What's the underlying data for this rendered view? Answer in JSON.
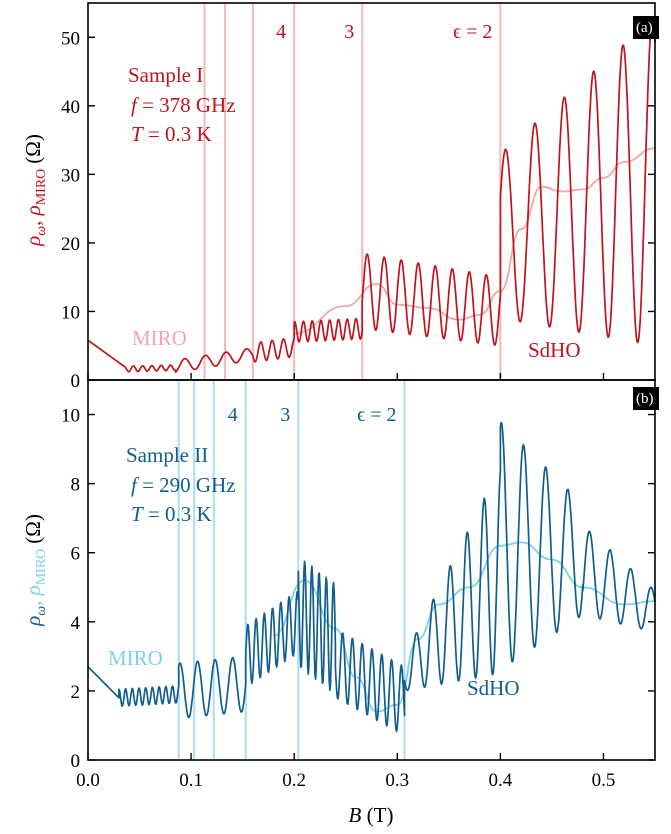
{
  "chart_data": [
    {
      "panel": "a",
      "panel_tag": "(a)",
      "type": "line",
      "colors": {
        "main": "#c0141c",
        "miro": "#f2a6a8",
        "epsilon_line": "#f6b7b8"
      },
      "ylabel": {
        "rho": "ρ",
        "omega": "ω",
        "comma": ", ",
        "miro_sub": "MIRO",
        "unit": "(Ω)"
      },
      "xlim": [
        0.0,
        0.55
      ],
      "ylim": [
        0,
        55
      ],
      "yticks": [
        0,
        10,
        20,
        30,
        40,
        50
      ],
      "sample": {
        "name": "Sample I",
        "f_label": "f",
        "f_value": " = 378 GHz",
        "t_label": "T",
        "t_value": " = 0.3 K"
      },
      "labels": {
        "miro": "MIRO",
        "sdho": "SdHO"
      },
      "epsilon_lines": [
        {
          "x": 0.113,
          "label": ""
        },
        {
          "x": 0.133,
          "label": ""
        },
        {
          "x": 0.16,
          "label": ""
        },
        {
          "x": 0.2,
          "label": "4"
        },
        {
          "x": 0.266,
          "label": "3"
        },
        {
          "x": 0.4,
          "label": "ϵ = 2"
        }
      ],
      "series": [
        {
          "role": "rho_omega",
          "segments": [
            {
              "from": 0.0,
              "to": 0.035,
              "kind": "fall",
              "base": [
                5.8,
                2.0
              ],
              "amp": 0,
              "period": 0.01
            },
            {
              "from": 0.035,
              "to": 0.085,
              "kind": "osc",
              "base": [
                1.6,
                1.8
              ],
              "amp": 0.4,
              "period": 0.009
            },
            {
              "from": 0.085,
              "to": 0.16,
              "kind": "osc",
              "base": [
                2.0,
                3.8
              ],
              "amp": 0.9,
              "period": 0.02
            },
            {
              "from": 0.16,
              "to": 0.2,
              "kind": "osc",
              "base": [
                4.0,
                4.8
              ],
              "amp": 1.4,
              "period": 0.011
            },
            {
              "from": 0.2,
              "to": 0.266,
              "kind": "osc",
              "base": [
                7.0,
                7.5
              ],
              "amp": 1.5,
              "period": 0.0085
            },
            {
              "from": 0.266,
              "to": 0.4,
              "kind": "osc",
              "base": [
                13.0,
                10.0
              ],
              "amp": [
                5.5,
                5.0
              ],
              "period": 0.0165
            },
            {
              "from": 0.4,
              "to": 0.55,
              "kind": "osc",
              "base": [
                21.0,
                29.0
              ],
              "amp": [
                12.0,
                24.0
              ],
              "period": 0.0285
            }
          ]
        },
        {
          "role": "rho_miro",
          "points": [
            [
              0.2,
              6.8
            ],
            [
              0.25,
              10.8
            ],
            [
              0.28,
              14.0
            ],
            [
              0.3,
              11.0
            ],
            [
              0.33,
              10.5
            ],
            [
              0.36,
              8.8
            ],
            [
              0.38,
              9.5
            ],
            [
              0.4,
              13.0
            ],
            [
              0.42,
              22.0
            ],
            [
              0.44,
              28.2
            ],
            [
              0.46,
              27.5
            ],
            [
              0.48,
              27.8
            ],
            [
              0.5,
              29.5
            ],
            [
              0.52,
              31.8
            ],
            [
              0.55,
              33.8
            ]
          ]
        }
      ]
    },
    {
      "panel": "b",
      "panel_tag": "(b)",
      "type": "line",
      "colors": {
        "main": "#105e8e",
        "miro": "#7ed0ef",
        "epsilon_line": "#a9def4"
      },
      "ylabel": {
        "rho": "ρ",
        "omega": "ω",
        "comma": ", ",
        "miro_sub": "MIRO",
        "unit": "(Ω)"
      },
      "xlabel": {
        "var": "B",
        "unit": " (T)"
      },
      "xlim": [
        0.0,
        0.55
      ],
      "ylim": [
        0,
        11
      ],
      "xticks": [
        "0.0",
        "0.1",
        "0.2",
        "0.3",
        "0.4",
        "0.5"
      ],
      "xtick_values": [
        0.0,
        0.1,
        0.2,
        0.3,
        0.4,
        0.5
      ],
      "yticks": [
        0,
        2,
        4,
        6,
        8,
        10
      ],
      "sample": {
        "name": "Sample II",
        "f_label": "f",
        "f_value": " = 290 GHz",
        "t_label": "T",
        "t_value": " = 0.3 K"
      },
      "labels": {
        "miro": "MIRO",
        "sdho": "SdHO"
      },
      "epsilon_lines": [
        {
          "x": 0.088,
          "label": ""
        },
        {
          "x": 0.103,
          "label": ""
        },
        {
          "x": 0.122,
          "label": ""
        },
        {
          "x": 0.153,
          "label": "4"
        },
        {
          "x": 0.204,
          "label": "3"
        },
        {
          "x": 0.307,
          "label": "ϵ = 2"
        }
      ],
      "series": [
        {
          "role": "rho_omega",
          "segments": [
            {
              "from": 0.0,
              "to": 0.03,
              "kind": "fall",
              "base": [
                2.7,
                1.8
              ],
              "amp": 0,
              "period": 0.01
            },
            {
              "from": 0.03,
              "to": 0.088,
              "kind": "osc",
              "base": [
                1.8,
                1.9
              ],
              "amp": 0.25,
              "period": 0.0065
            },
            {
              "from": 0.088,
              "to": 0.153,
              "kind": "osc",
              "base": [
                2.0,
                2.2
              ],
              "amp": 0.8,
              "period": 0.017
            },
            {
              "from": 0.153,
              "to": 0.204,
              "kind": "osc",
              "base": [
                3.0,
                4.0
              ],
              "amp": 0.9,
              "period": 0.008
            },
            {
              "from": 0.204,
              "to": 0.24,
              "kind": "osc",
              "base": [
                4.3,
                3.5
              ],
              "amp": 1.6,
              "period": 0.007
            },
            {
              "from": 0.24,
              "to": 0.307,
              "kind": "osc",
              "base": [
                2.8,
                1.7
              ],
              "amp": 1.0,
              "period": 0.0095
            },
            {
              "from": 0.307,
              "to": 0.4,
              "kind": "osc",
              "base": [
                2.5,
                5.5
              ],
              "amp": [
                0.5,
                3.0
              ],
              "period": 0.0165
            },
            {
              "from": 0.4,
              "to": 0.48,
              "kind": "osc",
              "base": [
                6.2,
                5.8
              ],
              "amp": [
                3.6,
                1.6
              ],
              "period": 0.0215
            },
            {
              "from": 0.48,
              "to": 0.55,
              "kind": "osc",
              "base": [
                5.5,
                4.3
              ],
              "amp": [
                1.3,
                0.6
              ],
              "period": 0.02
            }
          ]
        },
        {
          "role": "rho_miro",
          "points": [
            [
              0.18,
              3.6
            ],
            [
              0.21,
              5.2
            ],
            [
              0.24,
              3.8
            ],
            [
              0.26,
              2.4
            ],
            [
              0.28,
              1.4
            ],
            [
              0.3,
              1.6
            ],
            [
              0.32,
              3.5
            ],
            [
              0.34,
              4.5
            ],
            [
              0.37,
              5.0
            ],
            [
              0.4,
              6.2
            ],
            [
              0.42,
              6.3
            ],
            [
              0.45,
              5.8
            ],
            [
              0.48,
              5.0
            ],
            [
              0.52,
              4.5
            ],
            [
              0.55,
              4.6
            ]
          ]
        }
      ]
    }
  ]
}
